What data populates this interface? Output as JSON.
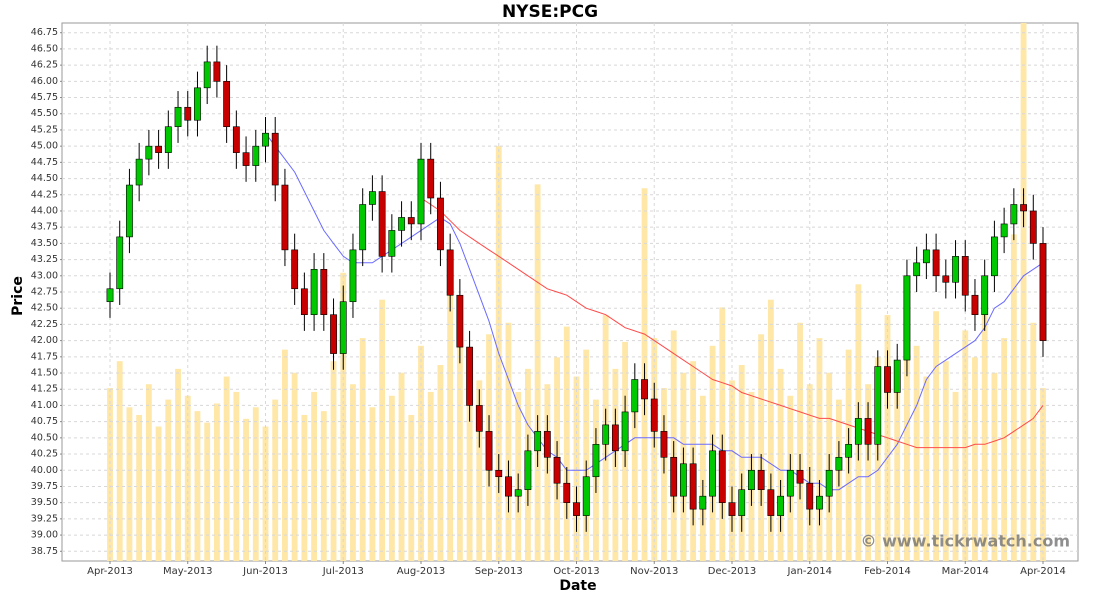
{
  "chart_data": {
    "type": "candlestick",
    "title": "NYSE:PCG",
    "x_label": "Date",
    "y_label": "Price",
    "watermark": "© www.tickrwatch.com",
    "categories": [
      "Apr-2013",
      null,
      null,
      null,
      null,
      null,
      null,
      null,
      "May-2013",
      null,
      null,
      null,
      null,
      null,
      null,
      null,
      "Jun-2013",
      null,
      null,
      null,
      null,
      null,
      null,
      null,
      "Jul-2013",
      null,
      null,
      null,
      null,
      null,
      null,
      null,
      "Aug-2013",
      null,
      null,
      null,
      null,
      null,
      null,
      null,
      "Sep-2013",
      null,
      null,
      null,
      null,
      null,
      null,
      null,
      "Oct-2013",
      null,
      null,
      null,
      null,
      null,
      null,
      null,
      "Nov-2013",
      null,
      null,
      null,
      null,
      null,
      null,
      null,
      "Dec-2013",
      null,
      null,
      null,
      null,
      null,
      null,
      null,
      "Jan-2014",
      null,
      null,
      null,
      null,
      null,
      null,
      null,
      "Feb-2014",
      null,
      null,
      null,
      null,
      null,
      null,
      null,
      "Mar-2014",
      null,
      null,
      null,
      null,
      null,
      null,
      null,
      "Apr-2014"
    ],
    "open": [
      42.6,
      42.8,
      43.6,
      44.4,
      44.8,
      45.0,
      44.9,
      45.3,
      45.6,
      45.4,
      45.9,
      46.3,
      46.0,
      45.3,
      44.9,
      44.7,
      45.0,
      45.2,
      44.4,
      43.4,
      42.8,
      42.4,
      43.1,
      42.4,
      41.8,
      42.6,
      43.4,
      44.1,
      44.3,
      43.3,
      43.7,
      43.9,
      43.8,
      44.8,
      44.2,
      43.4,
      42.7,
      41.9,
      41.0,
      40.6,
      40.0,
      39.9,
      39.6,
      39.7,
      40.3,
      40.6,
      40.2,
      39.8,
      39.5,
      39.3,
      39.9,
      40.4,
      40.7,
      40.3,
      40.9,
      41.4,
      41.1,
      40.6,
      40.2,
      39.6,
      40.1,
      39.4,
      39.6,
      40.3,
      39.5,
      39.3,
      39.7,
      40.0,
      39.7,
      39.3,
      39.6,
      40.0,
      39.8,
      39.4,
      39.6,
      40.0,
      40.2,
      40.4,
      40.8,
      40.4,
      41.6,
      41.2,
      41.7,
      43.0,
      43.2,
      43.4,
      43.0,
      42.9,
      43.3,
      42.7,
      42.4,
      43.0,
      43.6,
      43.8,
      44.1,
      44.0,
      43.5
    ],
    "high": [
      43.05,
      43.85,
      44.65,
      45.05,
      45.25,
      45.25,
      45.55,
      45.85,
      45.85,
      46.15,
      46.55,
      46.55,
      46.25,
      45.55,
      45.15,
      45.25,
      45.45,
      45.45,
      44.65,
      43.65,
      43.05,
      43.35,
      43.35,
      42.65,
      42.85,
      43.65,
      44.35,
      44.55,
      44.55,
      43.95,
      44.15,
      44.15,
      45.05,
      45.05,
      44.45,
      43.65,
      42.95,
      42.15,
      41.25,
      40.85,
      40.25,
      40.15,
      39.95,
      40.55,
      40.85,
      40.85,
      40.45,
      40.05,
      39.75,
      40.15,
      40.65,
      40.95,
      40.95,
      41.15,
      41.65,
      41.65,
      41.35,
      40.85,
      40.45,
      40.35,
      40.35,
      39.85,
      40.55,
      40.55,
      39.75,
      39.95,
      40.25,
      40.25,
      39.95,
      39.85,
      40.25,
      40.25,
      40.05,
      39.85,
      40.25,
      40.45,
      40.65,
      41.05,
      41.05,
      41.85,
      41.85,
      41.95,
      43.25,
      43.45,
      43.65,
      43.65,
      43.25,
      43.55,
      43.55,
      42.95,
      43.25,
      43.85,
      44.05,
      44.35,
      44.35,
      44.25,
      43.75
    ],
    "low": [
      42.35,
      42.55,
      43.35,
      44.15,
      44.55,
      44.65,
      44.65,
      45.05,
      45.15,
      45.15,
      45.65,
      45.75,
      45.05,
      44.65,
      44.45,
      44.45,
      44.75,
      44.15,
      43.15,
      42.55,
      42.15,
      42.15,
      42.15,
      41.55,
      41.55,
      42.35,
      43.15,
      43.85,
      43.05,
      43.05,
      43.45,
      43.55,
      43.55,
      43.95,
      43.15,
      42.45,
      41.65,
      40.75,
      40.35,
      39.75,
      39.65,
      39.35,
      39.35,
      39.45,
      40.05,
      39.95,
      39.55,
      39.25,
      39.05,
      39.05,
      39.65,
      40.15,
      40.05,
      40.05,
      40.65,
      40.85,
      40.35,
      39.95,
      39.35,
      39.35,
      39.15,
      39.15,
      39.35,
      39.25,
      39.05,
      39.05,
      39.45,
      39.45,
      39.05,
      39.05,
      39.35,
      39.55,
      39.15,
      39.15,
      39.35,
      39.75,
      39.95,
      40.15,
      40.15,
      40.15,
      40.95,
      40.95,
      41.45,
      42.75,
      42.95,
      42.75,
      42.65,
      42.65,
      42.45,
      42.15,
      42.15,
      42.75,
      43.35,
      43.55,
      43.75,
      43.25,
      41.75
    ],
    "close": [
      42.8,
      43.6,
      44.4,
      44.8,
      45.0,
      44.9,
      45.3,
      45.6,
      45.4,
      45.9,
      46.3,
      46.0,
      45.3,
      44.9,
      44.7,
      45.0,
      45.2,
      44.4,
      43.4,
      42.8,
      42.4,
      43.1,
      42.4,
      41.8,
      42.6,
      43.4,
      44.1,
      44.3,
      43.3,
      43.7,
      43.9,
      43.8,
      44.8,
      44.2,
      43.4,
      42.7,
      41.9,
      41.0,
      40.6,
      40.0,
      39.9,
      39.6,
      39.7,
      40.3,
      40.6,
      40.2,
      39.8,
      39.5,
      39.3,
      39.9,
      40.4,
      40.7,
      40.3,
      40.9,
      41.4,
      41.1,
      40.6,
      40.2,
      39.6,
      40.1,
      39.4,
      39.6,
      40.3,
      39.5,
      39.3,
      39.7,
      40.0,
      39.7,
      39.3,
      39.6,
      40.0,
      39.8,
      39.4,
      39.6,
      40.0,
      40.2,
      40.4,
      40.8,
      40.4,
      41.6,
      41.2,
      41.7,
      43.0,
      43.2,
      43.4,
      43.0,
      42.9,
      43.3,
      42.7,
      42.4,
      43.0,
      43.6,
      43.8,
      44.1,
      44.0,
      43.5,
      42.0
    ],
    "up_color": "#00c800",
    "down_color": "#c80000",
    "moving_averages": [
      {
        "color": "#6b6bff",
        "values": [
          null,
          null,
          null,
          null,
          null,
          null,
          null,
          null,
          null,
          null,
          null,
          null,
          null,
          null,
          null,
          null,
          45.2,
          45.0,
          44.8,
          44.6,
          44.3,
          44.0,
          43.7,
          43.5,
          43.3,
          43.2,
          43.2,
          43.2,
          43.3,
          43.4,
          43.5,
          43.6,
          43.7,
          43.8,
          43.9,
          43.8,
          43.5,
          43.1,
          42.7,
          42.3,
          41.8,
          41.4,
          41.0,
          40.7,
          40.5,
          40.3,
          40.2,
          40.0,
          40.0,
          40.0,
          40.1,
          40.2,
          40.3,
          40.4,
          40.5,
          40.5,
          40.5,
          40.5,
          40.5,
          40.4,
          40.4,
          40.4,
          40.4,
          40.3,
          40.3,
          40.2,
          40.2,
          40.2,
          40.1,
          40.0,
          40.0,
          39.9,
          39.8,
          39.8,
          39.7,
          39.7,
          39.8,
          39.9,
          39.9,
          40.0,
          40.2,
          40.4,
          40.7,
          41.0,
          41.4,
          41.6,
          41.7,
          41.8,
          41.9,
          42.0,
          42.2,
          42.5,
          42.6,
          42.8,
          43.0,
          43.1,
          43.2
        ]
      },
      {
        "color": "#ff4a4a",
        "values": [
          null,
          null,
          null,
          null,
          null,
          null,
          null,
          null,
          null,
          null,
          null,
          null,
          null,
          null,
          null,
          null,
          null,
          null,
          null,
          null,
          null,
          null,
          null,
          null,
          null,
          null,
          null,
          null,
          null,
          null,
          null,
          null,
          44.2,
          44.1,
          44.0,
          43.85,
          43.7,
          43.6,
          43.5,
          43.4,
          43.3,
          43.2,
          43.1,
          43.0,
          42.9,
          42.8,
          42.75,
          42.7,
          42.6,
          42.5,
          42.45,
          42.4,
          42.3,
          42.2,
          42.15,
          42.1,
          42.0,
          41.9,
          41.8,
          41.7,
          41.6,
          41.5,
          41.4,
          41.35,
          41.3,
          41.2,
          41.15,
          41.1,
          41.05,
          41.0,
          40.95,
          40.9,
          40.85,
          40.8,
          40.8,
          40.75,
          40.7,
          40.65,
          40.6,
          40.55,
          40.5,
          40.45,
          40.4,
          40.35,
          40.35,
          40.35,
          40.35,
          40.35,
          40.35,
          40.4,
          40.4,
          40.45,
          40.5,
          40.6,
          40.7,
          40.8,
          41.0
        ]
      }
    ],
    "volume": {
      "color": "#ffe7a8",
      "axis": "y2",
      "values": [
        4.5,
        5.2,
        4.0,
        3.8,
        4.6,
        3.5,
        4.2,
        5.0,
        4.3,
        3.9,
        3.6,
        4.1,
        4.8,
        4.4,
        3.7,
        4.0,
        3.5,
        4.2,
        5.5,
        4.9,
        3.8,
        4.4,
        3.9,
        5.2,
        7.5,
        4.6,
        5.8,
        4.0,
        6.8,
        4.3,
        4.9,
        3.8,
        5.6,
        4.4,
        5.1,
        7.0,
        6.3,
        5.4,
        4.7,
        5.9,
        10.8,
        6.2,
        4.4,
        5.0,
        9.8,
        4.6,
        5.3,
        6.1,
        4.8,
        5.5,
        4.2,
        6.4,
        5.0,
        5.7,
        4.6,
        9.7,
        5.8,
        4.5,
        6.0,
        4.9,
        5.2,
        4.3,
        5.6,
        6.6,
        4.7,
        5.1,
        4.4,
        5.9,
        6.8,
        5.0,
        4.3,
        6.2,
        4.6,
        5.8,
        4.9,
        4.2,
        5.5,
        7.2,
        4.6,
        5.3,
        6.4,
        5.0,
        7.0,
        5.6,
        4.8,
        6.5,
        5.2,
        4.4,
        6.0,
        5.3,
        6.7,
        4.9,
        5.8,
        8.5,
        14.0,
        6.2,
        4.5
      ]
    },
    "y2lim": [
      0,
      14
    ],
    "ylim": [
      38.6,
      46.9
    ],
    "yticks": [
      38.75,
      {
        "value": 39,
        "label": "39.00"
      },
      39.25,
      {
        "value": 39.5,
        "label": "39.50"
      },
      39.75,
      {
        "value": 40,
        "label": "40.00"
      },
      40.25,
      {
        "value": 40.5,
        "label": "40.50"
      },
      40.75,
      {
        "value": 41,
        "label": "41.00"
      },
      41.25,
      {
        "value": 41.5,
        "label": "41.50"
      },
      41.75,
      {
        "value": 42,
        "label": "42.00"
      },
      42.25,
      {
        "value": 42.5,
        "label": "42.50"
      },
      42.75,
      {
        "value": 43,
        "label": "43.00"
      },
      43.25,
      {
        "value": 43.5,
        "label": "43.50"
      },
      43.75,
      {
        "value": 44,
        "label": "44.00"
      },
      44.25,
      {
        "value": 44.5,
        "label": "44.50"
      },
      44.75,
      {
        "value": 45,
        "label": "45.00"
      },
      45.25,
      {
        "value": 45.5,
        "label": "45.50"
      },
      45.75,
      {
        "value": 46,
        "label": "46.00"
      },
      46.25,
      {
        "value": 46.5,
        "label": "46.50"
      },
      46.75
    ],
    "grid": true
  }
}
